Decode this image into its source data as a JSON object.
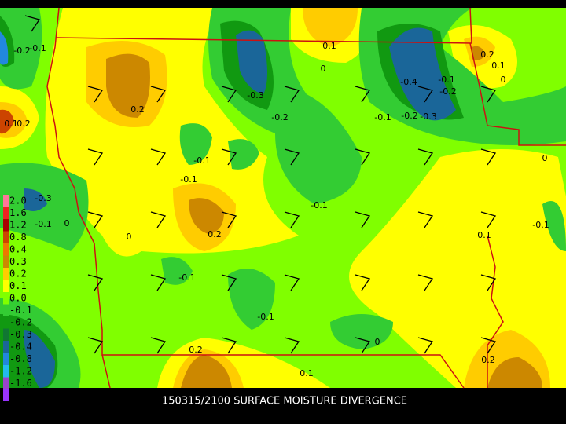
{
  "caption": "150315/2100 SURFACE MOISTURE DIVERGENCE",
  "colorbar": {
    "labels": [
      "2.0",
      "1.6",
      "1.2",
      "0.8",
      "0.4",
      "0.3",
      "0.2",
      "0.1",
      "0.0",
      "-0.1",
      "-0.2",
      "-0.3",
      "-0.4",
      "-0.8",
      "-1.2",
      "-1.6"
    ]
  },
  "contour_labels": [
    "-0.2",
    "-0.1",
    "0.1",
    "0",
    "-0.3",
    "0.2",
    "-0.2",
    "-0.1",
    "-0.2",
    "-0.3",
    "-0.4",
    "-0.1",
    "-0.2",
    "0.2",
    "0.1",
    "0",
    "0.1",
    "0.2",
    "-0.1",
    "-0.1",
    "0",
    "-0.3",
    "-0.1",
    "0",
    "-0.1",
    "0.2",
    "0",
    "0.1",
    "-0.1",
    "-0.1",
    "-0.1",
    "0",
    "0.2",
    "0.2",
    "0.1"
  ]
}
